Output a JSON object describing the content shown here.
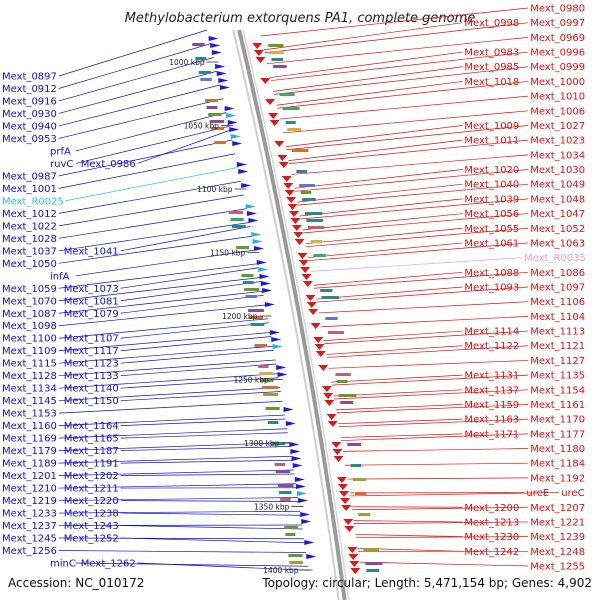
{
  "title": "Methylobacterium extorquens PA1, complete genome",
  "accession": "Accession: NC_010172",
  "topology": "Topology: circular; Length: 5,471,154 bp; Genes: 4,902",
  "colors": {
    "left_label": "#1010d0",
    "right_label": "#e01010",
    "rna_left": "#30c8e0",
    "rna_right": "#f0a0c8",
    "backbone": "#9a9a9a",
    "tick_dot": "#2a8a2a"
  },
  "ticks": [
    "1000 kbp",
    "1050 kbp",
    "1100 kbp",
    "1150 kbp",
    "1200 kbp",
    "1250 kbp",
    "1300 kbp",
    "1350 kbp",
    "1400 kbp"
  ],
  "left_labels": [
    "Mext_0897",
    "Mext_0912",
    "Mext_0916",
    "Mext_0930",
    "Mext_0940",
    "Mext_0953",
    "prfA",
    "ruvC",
    "Mext_0986",
    "Mext_0987",
    "Mext_1001",
    "Mext_R0025",
    "Mext_1012",
    "Mext_1022",
    "Mext_1028",
    "Mext_1037",
    "Mext_1041",
    "Mext_1050",
    "infA",
    "Mext_1059",
    "Mext_1073",
    "Mext_1070",
    "Mext_1081",
    "Mext_1087",
    "Mext_1079",
    "Mext_1098",
    "Mext_1100",
    "Mext_1107",
    "Mext_1109",
    "Mext_1117",
    "Mext_1115",
    "Mext_1123",
    "Mext_1128",
    "Mext_1133",
    "Mext_1134",
    "Mext_1140",
    "Mext_1145",
    "Mext_1150",
    "Mext_1153",
    "Mext_1160",
    "Mext_1164",
    "Mext_1169",
    "Mext_1165",
    "Mext_1179",
    "Mext_1187",
    "Mext_1189",
    "Mext_1191",
    "Mext_1201",
    "Mext_1202",
    "Mext_1210",
    "Mext_1211",
    "Mext_1219",
    "Mext_1220",
    "Mext_1233",
    "Mext_1238",
    "Mext_1237",
    "Mext_1243",
    "Mext_1245",
    "Mext_1252",
    "Mext_1256",
    "minC",
    "Mext_1262"
  ],
  "right_labels": [
    "Mext_0980",
    "Mext_0998",
    "Mext_0997",
    "Mext_0969",
    "Mext_0983",
    "Mext_0996",
    "Mext_0985",
    "Mext_0999",
    "Mext_1018",
    "Mext_1000",
    "Mext_1010",
    "Mext_1006",
    "Mext_1009",
    "Mext_1027",
    "Mext_1011",
    "Mext_1023",
    "Mext_1034",
    "Mext_1020",
    "Mext_1030",
    "Mext_1040",
    "Mext_1049",
    "Mext_1039",
    "Mext_1048",
    "Mext_1056",
    "Mext_1047",
    "Mext_1055",
    "Mext_1052",
    "Mext_1061",
    "Mext_1063",
    "Mext_R0035",
    "Mext_1088",
    "Mext_1086",
    "Mext_1093",
    "Mext_1097",
    "Mext_1106",
    "Mext_1104",
    "Mext_1114",
    "Mext_1113",
    "Mext_1122",
    "Mext_1121",
    "Mext_1127",
    "Mext_1131",
    "Mext_1135",
    "Mext_1137",
    "Mext_1154",
    "Mext_1159",
    "Mext_1161",
    "Mext_1163",
    "Mext_1170",
    "Mext_1171",
    "Mext_1177",
    "Mext_1180",
    "Mext_1184",
    "Mext_1192",
    "ureE",
    "ureC",
    "Mext_1200",
    "Mext_1207",
    "Mext_1213",
    "Mext_1221",
    "Mext_1230",
    "Mext_1239",
    "Mext_1242",
    "Mext_1248",
    "Mext_1255"
  ]
}
